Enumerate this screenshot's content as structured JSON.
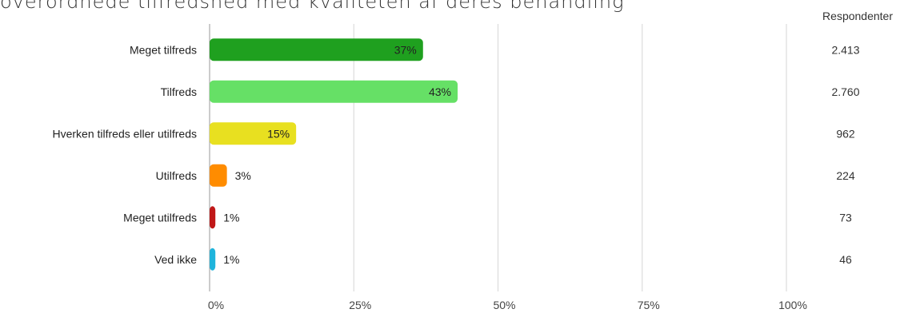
{
  "title": "overordnede tilfredshed med kvaliteten af deres behandling",
  "respondents_header": "Respondenter",
  "chart_data": {
    "type": "bar",
    "orientation": "horizontal",
    "categories": [
      "Meget tilfreds",
      "Tilfreds",
      "Hverken tilfreds eller utilfreds",
      "Utilfreds",
      "Meget utilfreds",
      "Ved ikke"
    ],
    "values": [
      37,
      43,
      15,
      3,
      1,
      1
    ],
    "value_labels": [
      "37%",
      "43%",
      "15%",
      "3%",
      "1%",
      "1%"
    ],
    "respondents": [
      "2.413",
      "2.760",
      "962",
      "224",
      "73",
      "46"
    ],
    "colors": [
      "#1fa01f",
      "#66e066",
      "#e8e020",
      "#ff8c00",
      "#c01818",
      "#1fb4dc"
    ],
    "xlim": [
      0,
      100
    ],
    "xticks": [
      0,
      25,
      50,
      75,
      100
    ],
    "xtick_labels": [
      "0%",
      "25%",
      "50%",
      "75%",
      "100%"
    ],
    "grid": true
  }
}
